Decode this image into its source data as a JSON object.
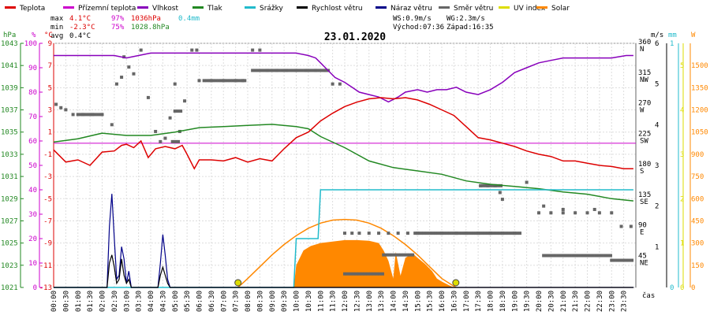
{
  "chart_data": {
    "type": "line",
    "title": "23.01.2020",
    "legend": {
      "placement": "top",
      "items": [
        {
          "label": "Teplota",
          "color": "#dd0000"
        },
        {
          "label": "Přízemní teplota",
          "color": "#cc00cc"
        },
        {
          "label": "Vlhkost",
          "color": "#8800bb"
        },
        {
          "label": "Tlak",
          "color": "#228822"
        },
        {
          "label": "Srážky",
          "color": "#22bbcc"
        },
        {
          "label": "Rychlost větru",
          "color": "#000000"
        },
        {
          "label": "Náraz větru",
          "color": "#000088"
        },
        {
          "label": "Směr větru",
          "color": "#666666"
        },
        {
          "label": "UV index",
          "color": "#dddd00"
        },
        {
          "label": "Solar",
          "color": "#ff8800"
        }
      ]
    },
    "stats": {
      "max_label": "max",
      "max_temp": "4.1°C",
      "max_hum": "97%",
      "max_press": "1036hPa",
      "max_rain": "0.4mm",
      "min_label": "min",
      "min_temp": "-2.3°C",
      "min_hum": "75%",
      "min_press": "1028.8hPa",
      "avg_label": "avg",
      "avg_temp": "0.4°C",
      "ws": "WS:0.9m/s",
      "wg": "WG:2.3m/s",
      "sunrise": "Východ:07:36",
      "sunset": "Západ:16:35"
    },
    "axes": {
      "hpa": {
        "label": "hPa",
        "color": "#228822",
        "range": [
          1021,
          1043
        ],
        "ticks": [
          "1043",
          "1041",
          "1039",
          "1037",
          "1035",
          "1033",
          "1031",
          "1029",
          "1027",
          "1025",
          "1023",
          "1021"
        ]
      },
      "pct": {
        "label": "%",
        "color": "#cc00cc",
        "range": [
          0,
          100
        ],
        "ticks": [
          "100",
          "90",
          "80",
          "70",
          "60",
          "50",
          "40",
          "30",
          "20",
          "10",
          "0"
        ]
      },
      "degc": {
        "label": "°C",
        "color": "#dd0000",
        "range": [
          -13,
          9
        ],
        "ticks": [
          "9",
          "7",
          "5",
          "3",
          "1",
          "-1",
          "-3",
          "-5",
          "-7",
          "-9",
          "-11",
          "-13"
        ]
      },
      "dir": {
        "ticks": [
          "360",
          "315",
          "270",
          "225",
          "180",
          "135",
          "90",
          "45"
        ],
        "labels": [
          "N",
          "NW",
          "W",
          "SW",
          "S",
          "SE",
          "E",
          "NE"
        ],
        "range": [
          0,
          360
        ]
      },
      "ms": {
        "label": "m/s",
        "ticks": [
          "6",
          "5",
          "4",
          "3",
          "2",
          "1"
        ],
        "range": [
          0,
          6
        ]
      },
      "mm": {
        "label": "mm",
        "color": "#22bbcc",
        "ticks": [
          "1",
          "0"
        ],
        "range": [
          0,
          1
        ]
      },
      "w": {
        "label": "W",
        "color": "#ff8800",
        "ticks": [
          "1500",
          "1350",
          "1200",
          "1050",
          "900",
          "750",
          "600",
          "450",
          "300",
          "150",
          "0"
        ],
        "range": [
          0,
          1650
        ]
      },
      "uv": {
        "ticks": [
          "5",
          "4",
          "3",
          "2",
          "1",
          "0"
        ],
        "range": [
          0,
          5.5
        ],
        "color": "#dddd00"
      },
      "x_label": "čas",
      "x_ticks": [
        "00:00",
        "00:30",
        "01:00",
        "01:30",
        "02:00",
        "02:30",
        "03:00",
        "03:30",
        "04:00",
        "04:30",
        "05:00",
        "05:30",
        "06:00",
        "06:30",
        "07:00",
        "07:30",
        "08:00",
        "08:30",
        "09:00",
        "09:30",
        "10:00",
        "10:30",
        "11:00",
        "11:30",
        "12:00",
        "12:30",
        "13:00",
        "13:30",
        "14:00",
        "14:30",
        "15:00",
        "15:30",
        "16:00",
        "16:30",
        "17:00",
        "17:30",
        "18:00",
        "18:30",
        "19:00",
        "19:30",
        "20:00",
        "20:30",
        "21:00",
        "21:30",
        "22:00",
        "22:30",
        "23:00",
        "23:30"
      ]
    },
    "reference_line_c": 0,
    "series": [
      {
        "name": "Teplota",
        "color": "#dd0000",
        "unit": "C",
        "x": [
          0,
          0.5,
          1,
          1.5,
          2,
          2.5,
          2.8,
          3,
          3.3,
          3.6,
          3.9,
          4.2,
          4.6,
          5,
          5.3,
          5.5,
          5.8,
          6,
          6.2,
          6.5,
          7,
          7.5,
          8,
          8.5,
          9,
          9.5,
          10,
          10.5,
          11,
          11.5,
          12,
          12.5,
          13,
          13.5,
          14,
          14.5,
          15,
          15.5,
          16,
          16.5,
          17,
          17.5,
          18,
          18.5,
          19,
          19.5,
          20,
          20.5,
          21,
          21.5,
          22,
          22.5,
          23,
          23.5,
          23.9
        ],
        "y": [
          -0.6,
          -1.7,
          -1.5,
          -2.0,
          -0.8,
          -0.7,
          -0.2,
          -0.1,
          -0.4,
          0.2,
          -1.3,
          -0.5,
          -0.3,
          -0.5,
          -0.2,
          -1.0,
          -2.3,
          -1.5,
          -1.5,
          -1.5,
          -1.6,
          -1.3,
          -1.7,
          -1.4,
          -1.6,
          -0.5,
          0.5,
          1.0,
          2.0,
          2.7,
          3.3,
          3.7,
          4.0,
          4.1,
          4.0,
          4.1,
          3.9,
          3.5,
          3.0,
          2.5,
          1.5,
          0.5,
          0.3,
          0.0,
          -0.3,
          -0.7,
          -1.0,
          -1.2,
          -1.6,
          -1.6,
          -1.8,
          -2.0,
          -2.1,
          -2.3,
          -2.3
        ]
      },
      {
        "name": "Vlhkost",
        "color": "#8800bb",
        "unit": "pct",
        "x": [
          0,
          1,
          2,
          2.5,
          3,
          3.5,
          4,
          5,
          6,
          7,
          8,
          9,
          9.5,
          10,
          10.5,
          10.8,
          11,
          11.3,
          11.6,
          12,
          12.3,
          12.6,
          13,
          13.4,
          13.8,
          14.2,
          14.5,
          15,
          15.4,
          15.8,
          16.2,
          16.6,
          17,
          17.5,
          18,
          18.5,
          19,
          19.5,
          20,
          20.5,
          21,
          22,
          23,
          23.6,
          23.9
        ],
        "y": [
          95,
          95,
          95,
          95,
          94,
          95,
          96,
          96,
          96,
          96,
          96,
          96,
          96,
          96,
          95,
          94,
          92,
          89,
          86,
          84,
          82,
          80,
          79,
          78,
          76,
          78,
          80,
          81,
          80,
          81,
          81,
          82,
          80,
          79,
          81,
          84,
          88,
          90,
          92,
          93,
          94,
          94,
          94,
          95,
          95
        ]
      },
      {
        "name": "Tlak",
        "color": "#228822",
        "unit": "hPa",
        "x": [
          0,
          1,
          2,
          3,
          4,
          5,
          6,
          7,
          8,
          9,
          10,
          10.5,
          11,
          12,
          13,
          14,
          15,
          16,
          17,
          18,
          19,
          20,
          21,
          22,
          23,
          23.9
        ],
        "y": [
          1034.1,
          1034.4,
          1034.9,
          1034.7,
          1034.7,
          1035,
          1035.4,
          1035.5,
          1035.6,
          1035.7,
          1035.5,
          1035.3,
          1034.6,
          1033.6,
          1032.4,
          1031.8,
          1031.5,
          1031.2,
          1030.6,
          1030.3,
          1030.1,
          1029.9,
          1029.6,
          1029.4,
          1029.0,
          1028.8
        ]
      },
      {
        "name": "Srážky",
        "color": "#22bbcc",
        "unit": "mm",
        "x": [
          0,
          9.9,
          10.0,
          10.9,
          11.0,
          11.1,
          23.9
        ],
        "y": [
          0,
          0,
          0.2,
          0.2,
          0.4,
          0.4,
          0.4
        ]
      },
      {
        "name": "Náraz větru",
        "color": "#000088",
        "unit": "ms",
        "x": [
          0,
          2.2,
          2.3,
          2.4,
          2.5,
          2.6,
          2.7,
          2.8,
          2.9,
          3.0,
          3.1,
          3.2,
          4.3,
          4.4,
          4.5,
          4.6,
          4.7,
          4.8,
          5.0,
          23.9
        ],
        "y": [
          0,
          0,
          1.5,
          2.3,
          1.2,
          0.2,
          0.3,
          1.0,
          0.7,
          0.1,
          0.4,
          0,
          0,
          0.6,
          1.3,
          0.8,
          0.2,
          0,
          0,
          0
        ]
      },
      {
        "name": "Rychlost větru",
        "color": "#000000",
        "unit": "ms",
        "x": [
          0,
          2.2,
          2.3,
          2.4,
          2.5,
          2.6,
          2.7,
          2.8,
          2.9,
          3.0,
          3.1,
          3.2,
          4.3,
          4.4,
          4.5,
          4.6,
          4.7,
          4.8,
          5.0,
          23.9
        ],
        "y": [
          0,
          0,
          0.6,
          0.8,
          0.5,
          0.1,
          0.2,
          0.7,
          0.3,
          0.1,
          0.2,
          0,
          0,
          0.3,
          0.5,
          0.3,
          0.1,
          0,
          0,
          0
        ]
      },
      {
        "name": "Solar",
        "color": "#ff8800",
        "unit": "W",
        "x": [
          7.6,
          8,
          8.5,
          9,
          9.5,
          10,
          10.5,
          11,
          11.5,
          12,
          12.5,
          13,
          13.5,
          14,
          14.5,
          15,
          15.5,
          16,
          16.58
        ],
        "y": [
          0,
          60,
          140,
          220,
          290,
          350,
          400,
          435,
          455,
          460,
          455,
          435,
          400,
          350,
          290,
          220,
          140,
          60,
          0
        ]
      },
      {
        "name": "Solar-fill",
        "color": "#ff8800",
        "unit": "W",
        "x": [
          9.9,
          10,
          10.3,
          10.6,
          11,
          11.5,
          12,
          12.5,
          13,
          13.4,
          13.6,
          13.8,
          14.0,
          14.1,
          14.3,
          14.5,
          14.8,
          15.0,
          15.3,
          15.6,
          15.8,
          16.0,
          16.3,
          16.5
        ],
        "y": [
          0,
          150,
          250,
          280,
          300,
          310,
          320,
          320,
          315,
          300,
          250,
          180,
          60,
          240,
          80,
          200,
          230,
          200,
          160,
          110,
          60,
          40,
          15,
          0
        ]
      }
    ],
    "wind_direction": {
      "name": "Směr větru",
      "color": "#666666",
      "points": [
        [
          0.1,
          270
        ],
        [
          0.3,
          265
        ],
        [
          0.5,
          262
        ],
        [
          0.8,
          255
        ],
        [
          1.2,
          255
        ],
        [
          1.6,
          255
        ],
        [
          2.0,
          255
        ],
        [
          2.4,
          240
        ],
        [
          2.6,
          300
        ],
        [
          2.8,
          310
        ],
        [
          2.9,
          340
        ],
        [
          3.1,
          325
        ],
        [
          3.3,
          315
        ],
        [
          3.6,
          350
        ],
        [
          3.9,
          280
        ],
        [
          4.2,
          230
        ],
        [
          4.4,
          215
        ],
        [
          4.6,
          220
        ],
        [
          4.8,
          250
        ],
        [
          5.0,
          300
        ],
        [
          5.2,
          230
        ],
        [
          5.4,
          275
        ],
        [
          5.7,
          350
        ],
        [
          5.9,
          350
        ],
        [
          6.0,
          305
        ],
        [
          6.5,
          305
        ],
        [
          7.0,
          305
        ],
        [
          7.5,
          305
        ],
        [
          7.8,
          305
        ],
        [
          8.2,
          350
        ],
        [
          8.5,
          350
        ],
        [
          8.8,
          320
        ],
        [
          9.2,
          320
        ],
        [
          9.6,
          320
        ],
        [
          10.0,
          320
        ],
        [
          10.4,
          320
        ],
        [
          10.8,
          320
        ],
        [
          11.2,
          320
        ],
        [
          11.5,
          300
        ],
        [
          11.8,
          300
        ],
        [
          12.0,
          80
        ],
        [
          12.3,
          80
        ],
        [
          12.6,
          80
        ],
        [
          13.0,
          80
        ],
        [
          13.4,
          80
        ],
        [
          13.8,
          80
        ],
        [
          14.2,
          80
        ],
        [
          14.6,
          80
        ],
        [
          15.0,
          80
        ],
        [
          16.0,
          80
        ],
        [
          16.6,
          80
        ],
        [
          17.0,
          80
        ],
        [
          17.5,
          80
        ],
        [
          18.0,
          80
        ],
        [
          18.5,
          80
        ],
        [
          19.0,
          80
        ],
        [
          20.0,
          110
        ],
        [
          20.5,
          110
        ],
        [
          21.0,
          110
        ],
        [
          21.5,
          110
        ],
        [
          22.0,
          110
        ],
        [
          22.5,
          110
        ],
        [
          23.0,
          110
        ],
        [
          23.4,
          90
        ],
        [
          23.8,
          90
        ],
        [
          17.6,
          150
        ],
        [
          17.9,
          150
        ],
        [
          18.2,
          150
        ],
        [
          18.4,
          140
        ],
        [
          18.5,
          130
        ],
        [
          19.5,
          155
        ],
        [
          20.2,
          120
        ],
        [
          21.0,
          115
        ],
        [
          22.3,
          115
        ]
      ]
    },
    "uv_markers": {
      "name": "UV index",
      "color": "#dddd00",
      "x": [
        7.6,
        16.58
      ],
      "y": [
        0,
        0
      ]
    }
  }
}
